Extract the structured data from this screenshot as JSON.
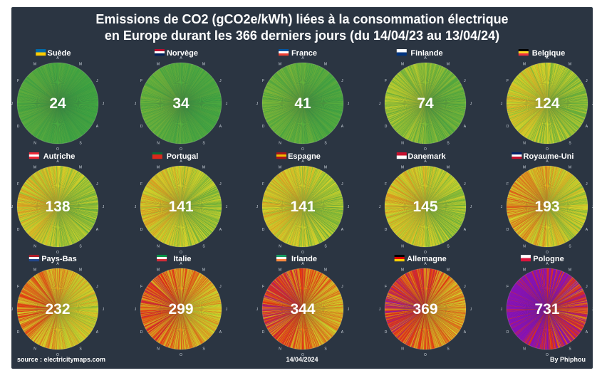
{
  "title_line1": "Emissions de CO2 (gCO2e/kWh) liées à la consommation électrique",
  "title_line2": "en Europe durant les 366 derniers jours (du 14/04/23 au 13/04/24)",
  "footer": {
    "source": "source : electricitymaps.com",
    "date": "14/04/2024",
    "author": "By Phiphou"
  },
  "colors": {
    "background": "#2b3542",
    "low": "#2e9e44",
    "mid": "#d8d82a",
    "high": "#e8300f",
    "very_high": "#8a12b8"
  },
  "chart_data": {
    "type": "radial",
    "unit": "gCO2e/kWh",
    "month_ticks": [
      "A",
      "M",
      "J",
      "J",
      "A",
      "S",
      "O",
      "N",
      "D",
      "J",
      "F",
      "M"
    ],
    "countries": [
      {
        "name": "Suède",
        "value": 24,
        "flag": [
          "#006aa7",
          "#fecc00"
        ]
      },
      {
        "name": "Norvège",
        "value": 34,
        "flag": [
          "#ba0c2f",
          "#ffffff",
          "#00205b"
        ]
      },
      {
        "name": "France",
        "value": 41,
        "flag": [
          "#0055a4",
          "#ffffff",
          "#ef4135"
        ]
      },
      {
        "name": "Finlande",
        "value": 74,
        "flag": [
          "#ffffff",
          "#003580"
        ]
      },
      {
        "name": "Belgique",
        "value": 124,
        "flag": [
          "#000000",
          "#fdda24",
          "#ef3340"
        ]
      },
      {
        "name": "Autriche",
        "value": 138,
        "flag": [
          "#ed2939",
          "#ffffff",
          "#ed2939"
        ]
      },
      {
        "name": "Portugal",
        "value": 141,
        "flag": [
          "#046a38",
          "#da291c",
          "#da291c"
        ]
      },
      {
        "name": "Espagne",
        "value": 141,
        "flag": [
          "#aa151b",
          "#f1bf00",
          "#aa151b"
        ]
      },
      {
        "name": "Danemark",
        "value": 145,
        "flag": [
          "#c8102e",
          "#ffffff"
        ]
      },
      {
        "name": "Royaume-Uni",
        "value": 193,
        "flag": [
          "#012169",
          "#ffffff",
          "#c8102e"
        ]
      },
      {
        "name": "Pays-Bas",
        "value": 232,
        "flag": [
          "#ae1c28",
          "#ffffff",
          "#21468b"
        ]
      },
      {
        "name": "Italie",
        "value": 299,
        "flag": [
          "#009246",
          "#ffffff",
          "#ce2b37"
        ]
      },
      {
        "name": "Irlande",
        "value": 344,
        "flag": [
          "#169b62",
          "#ffffff",
          "#ff883e"
        ]
      },
      {
        "name": "Allemagne",
        "value": 369,
        "flag": [
          "#000000",
          "#dd0000",
          "#ffce00"
        ]
      },
      {
        "name": "Pologne",
        "value": 731,
        "flag": [
          "#ffffff",
          "#dc143c"
        ]
      }
    ]
  }
}
